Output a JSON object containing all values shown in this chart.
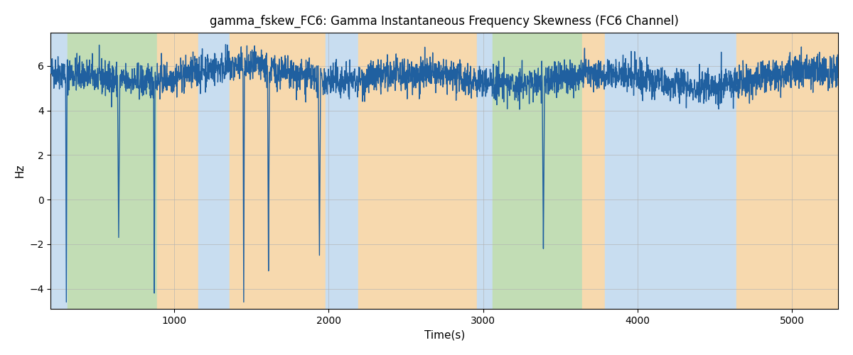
{
  "title": "gamma_fskew_FC6: Gamma Instantaneous Frequency Skewness (FC6 Channel)",
  "xlabel": "Time(s)",
  "ylabel": "Hz",
  "xlim": [
    200,
    5300
  ],
  "ylim": [
    -4.9,
    7.5
  ],
  "yticks": [
    -4,
    -2,
    0,
    2,
    4,
    6
  ],
  "xticks": [
    1000,
    2000,
    3000,
    4000,
    5000
  ],
  "bg_segments": [
    {
      "start": 200,
      "end": 310,
      "color": "#c8ddf0"
    },
    {
      "start": 310,
      "end": 890,
      "color": "#c2ddb5"
    },
    {
      "start": 890,
      "end": 1155,
      "color": "#f7d9ae"
    },
    {
      "start": 1155,
      "end": 1360,
      "color": "#c8ddf0"
    },
    {
      "start": 1360,
      "end": 1980,
      "color": "#f7d9ae"
    },
    {
      "start": 1980,
      "end": 2190,
      "color": "#c8ddf0"
    },
    {
      "start": 2190,
      "end": 2960,
      "color": "#f7d9ae"
    },
    {
      "start": 2960,
      "end": 3060,
      "color": "#c8ddf0"
    },
    {
      "start": 3060,
      "end": 3640,
      "color": "#c2ddb5"
    },
    {
      "start": 3640,
      "end": 3790,
      "color": "#f7d9ae"
    },
    {
      "start": 3790,
      "end": 4640,
      "color": "#c8ddf0"
    },
    {
      "start": 4640,
      "end": 5350,
      "color": "#f7d9ae"
    }
  ],
  "line_color": "#2060a0",
  "line_width": 1.0,
  "grid_color": "#b0b0b0",
  "grid_alpha": 0.6,
  "title_fontsize": 12,
  "label_fontsize": 11,
  "tick_fontsize": 10,
  "seed": 42,
  "spike_times": [
    300,
    640,
    870,
    1450,
    1610,
    1940,
    3390
  ],
  "spike_vals": [
    -4.6,
    -1.7,
    -4.2,
    -4.6,
    -3.2,
    -2.5,
    -2.2
  ],
  "spike_widths": [
    3,
    5,
    3,
    3,
    4,
    5,
    5
  ]
}
